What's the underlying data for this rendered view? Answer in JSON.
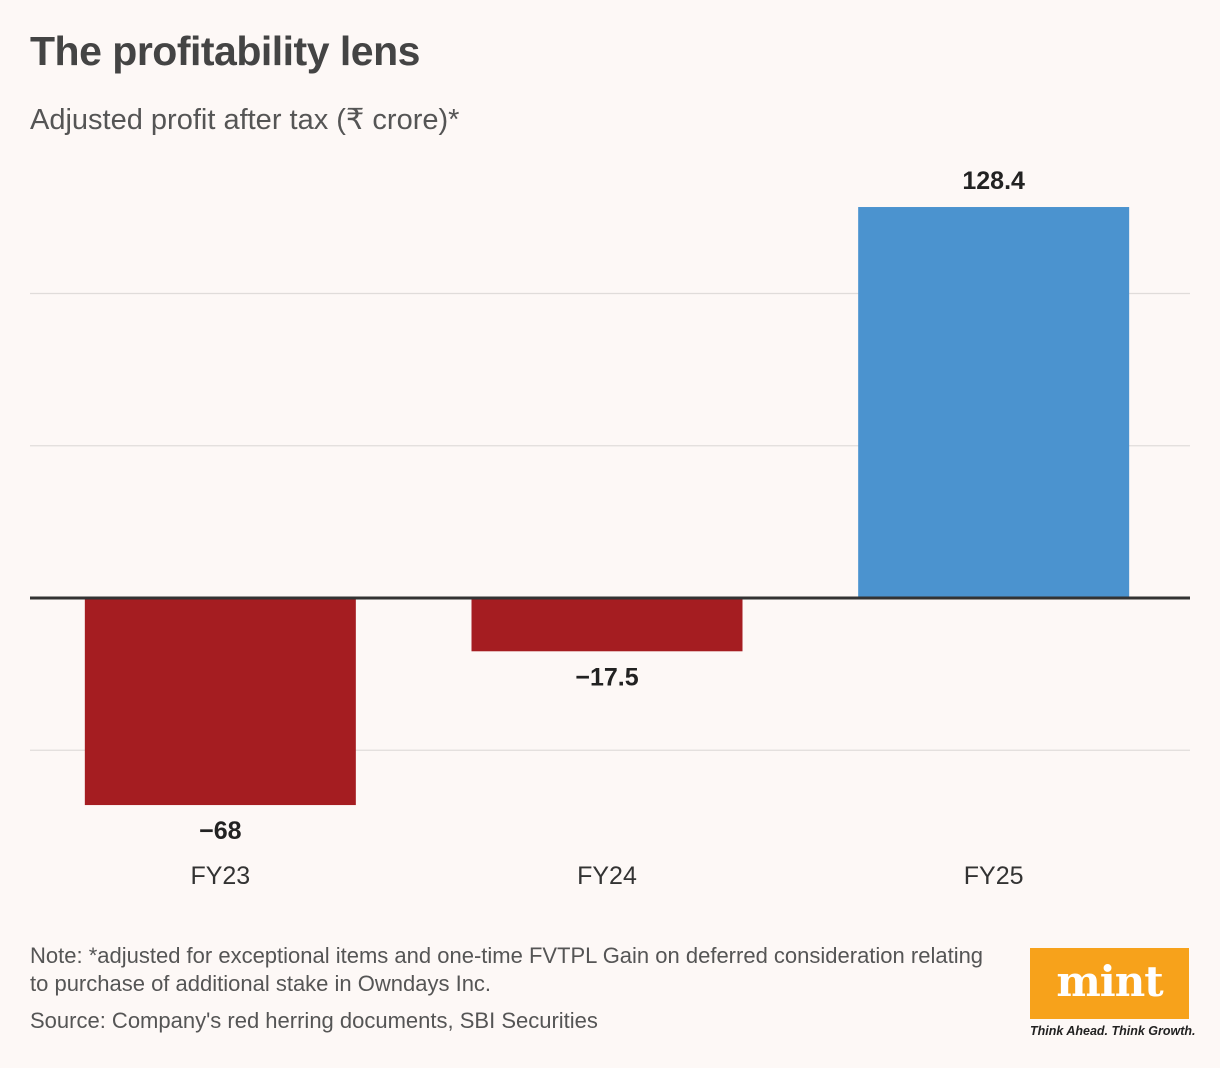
{
  "title": "The profitability lens",
  "subtitle": "Adjusted profit after tax (₹ crore)*",
  "chart_data": {
    "type": "bar",
    "categories": [
      "FY23",
      "FY24",
      "FY25"
    ],
    "values": [
      -68,
      -17.5,
      128.4
    ],
    "value_labels": [
      "−68",
      "−17.5",
      "128.4"
    ],
    "ylim": [
      -80,
      130
    ],
    "grid": true,
    "colors": {
      "negative": "#a51d21",
      "positive": "#4b93cf",
      "baseline": "#333333",
      "grid": "#e0dcda"
    }
  },
  "note": "Note: *adjusted for exceptional items and one-time FVTPL Gain on deferred consideration relating to purchase of additional stake in Owndays Inc.",
  "source": "Source: Company's red herring documents, SBI Securities",
  "brand": {
    "logo": "mint",
    "tagline": "Think Ahead. Think Growth.",
    "color": "#f7a21b"
  }
}
